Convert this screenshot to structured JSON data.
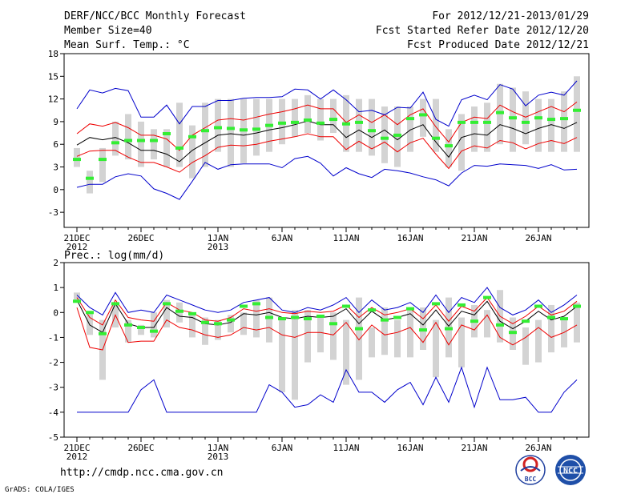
{
  "header": {
    "title": "DERF/NCC/BCC Monthly Forecast",
    "member_size": "Member Size=40",
    "variable": "Mean Surf. Temp.: °C",
    "period": "For 2012/12/21-2013/01/29",
    "started": "Fcst Started Refer Date 2012/12/20",
    "produced": "Fcst Produced Date 2012/12/21"
  },
  "footer": {
    "url": "http://cmdp.ncc.cma.gov.cn",
    "credit": "GrADS: COLA/IGES",
    "logo_bcc": "BCC",
    "logo_ncc": "NCC"
  },
  "colors": {
    "box": "#d3d3d3",
    "obs": "#33ee33",
    "ens_mean": "#000000",
    "spread": "#ee0000",
    "extreme": "#0000cc"
  },
  "chart_data": [
    {
      "type": "line",
      "title": "Mean Surf. Temp.: °C",
      "ylim": [
        -5,
        18
      ],
      "yticks": [
        -3,
        0,
        3,
        6,
        9,
        12,
        15,
        18
      ],
      "x_ticks": [
        {
          "day": 0,
          "label": "21DEC",
          "sub": "2012"
        },
        {
          "day": 5,
          "label": "26DEC",
          "sub": ""
        },
        {
          "day": 11,
          "label": "1JAN",
          "sub": "2013"
        },
        {
          "day": 16,
          "label": "6JAN",
          "sub": ""
        },
        {
          "day": 21,
          "label": "11JAN",
          "sub": ""
        },
        {
          "day": 26,
          "label": "16JAN",
          "sub": ""
        },
        {
          "day": 31,
          "label": "21JAN",
          "sub": ""
        },
        {
          "day": 36,
          "label": "26JAN",
          "sub": ""
        }
      ],
      "boxes": [
        [
          3,
          5.5
        ],
        [
          -0.5,
          2.5
        ],
        [
          1,
          5.5
        ],
        [
          4.5,
          9
        ],
        [
          4,
          10
        ],
        [
          3,
          9
        ],
        [
          4,
          8
        ],
        [
          3,
          8
        ],
        [
          3,
          11.5
        ],
        [
          1.5,
          8.5
        ],
        [
          3,
          11.5
        ],
        [
          5,
          12
        ],
        [
          3,
          12
        ],
        [
          3.5,
          12
        ],
        [
          4.5,
          12
        ],
        [
          5,
          12
        ],
        [
          6,
          12
        ],
        [
          7,
          12
        ],
        [
          7.5,
          12.5
        ],
        [
          6.5,
          12
        ],
        [
          7.5,
          12
        ],
        [
          5,
          12.5
        ],
        [
          5,
          12
        ],
        [
          4.5,
          12
        ],
        [
          3.5,
          11
        ],
        [
          3,
          11
        ],
        [
          5,
          11
        ],
        [
          7,
          12
        ],
        [
          5,
          12
        ],
        [
          3,
          8
        ],
        [
          2.5,
          10
        ],
        [
          5,
          11
        ],
        [
          5,
          11.5
        ],
        [
          6,
          14
        ],
        [
          5,
          13.5
        ],
        [
          6,
          13
        ],
        [
          5,
          12
        ],
        [
          5,
          12
        ],
        [
          5,
          13
        ],
        [
          5,
          15
        ]
      ],
      "observed": [
        4,
        1.5,
        4,
        6.2,
        6.5,
        6.5,
        6.5,
        7.4,
        5.5,
        7,
        7.8,
        8.2,
        8.1,
        7.9,
        8,
        8.5,
        8.8,
        8.9,
        9.2,
        8.8,
        9.3,
        8.7,
        8.9,
        7.8,
        6.8,
        7.2,
        9.4,
        9.9,
        6.8,
        5.8,
        8.9,
        8.9,
        8.9,
        10.2,
        9.5,
        8.9,
        9.5,
        9.3,
        9.4,
        10.5
      ],
      "series": [
        {
          "name": "ensemble mean",
          "color": "#000000",
          "values": [
            5.9,
            6.9,
            6.6,
            6.9,
            6.2,
            5.2,
            5.2,
            4.7,
            3.7,
            5.2,
            6.2,
            7.2,
            7.4,
            7.2,
            7.5,
            7.9,
            8.2,
            8.6,
            9.1,
            8.6,
            8.6,
            6.9,
            7.9,
            6.9,
            7.9,
            6.6,
            7.9,
            8.6,
            6.3,
            4.3,
            6.9,
            7.4,
            7.2,
            8.6,
            8.1,
            7.4,
            8.1,
            8.6,
            8.1,
            8.9
          ]
        },
        {
          "name": "mean + spread",
          "color": "#ee0000",
          "values": [
            7.4,
            8.7,
            8.4,
            8.9,
            8.2,
            7.2,
            7.2,
            6.7,
            5.2,
            7.2,
            8.2,
            9.2,
            9.4,
            9.2,
            9.6,
            10.0,
            10.3,
            10.7,
            11.2,
            10.7,
            10.7,
            8.9,
            9.9,
            8.9,
            9.9,
            8.6,
            9.9,
            10.7,
            8.3,
            6.3,
            8.9,
            9.6,
            9.4,
            11.2,
            10.3,
            9.6,
            10.3,
            11.0,
            10.3,
            11.6
          ]
        },
        {
          "name": "mean - spread",
          "color": "#ee0000",
          "values": [
            4.4,
            5.1,
            5.2,
            5.2,
            4.3,
            3.6,
            3.6,
            3.0,
            2.3,
            3.6,
            4.5,
            5.6,
            5.9,
            5.8,
            6.0,
            6.4,
            6.7,
            7.0,
            7.4,
            7.0,
            7.0,
            5.3,
            6.4,
            5.4,
            6.3,
            5.0,
            6.2,
            6.8,
            4.7,
            2.8,
            5.1,
            5.8,
            5.5,
            6.5,
            6.2,
            5.4,
            6.1,
            6.5,
            6.1,
            6.9
          ]
        },
        {
          "name": "maximum",
          "color": "#0000cc",
          "values": [
            10.7,
            13.2,
            12.8,
            13.4,
            13.1,
            9.6,
            9.6,
            11.2,
            8.7,
            11.0,
            11.0,
            11.8,
            11.8,
            12.1,
            12.2,
            12.2,
            12.3,
            13.3,
            13.2,
            12.0,
            13.2,
            11.9,
            10.3,
            10.5,
            9.9,
            10.9,
            10.8,
            12.9,
            9.3,
            8.4,
            11.9,
            12.5,
            11.9,
            13.9,
            13.3,
            11.1,
            12.5,
            12.9,
            12.5,
            14.4
          ]
        },
        {
          "name": "minimum",
          "color": "#0000cc",
          "values": [
            0.3,
            0.7,
            0.7,
            1.7,
            2.1,
            1.8,
            0.1,
            -0.5,
            -1.3,
            1.1,
            3.6,
            2.7,
            3.3,
            3.4,
            3.4,
            3.4,
            2.9,
            4.1,
            4.4,
            3.5,
            1.8,
            2.9,
            2.1,
            1.6,
            2.7,
            2.5,
            2.2,
            1.7,
            1.3,
            0.5,
            2.2,
            3.2,
            3.1,
            3.4,
            3.3,
            3.2,
            2.8,
            3.3,
            2.6,
            2.7
          ]
        }
      ]
    },
    {
      "type": "line",
      "title": "Prec.: log(mm/d)",
      "ylim": [
        -5,
        2
      ],
      "yticks": [
        -5,
        -4,
        -3,
        -2,
        -1,
        0,
        1,
        2
      ],
      "x_ticks": [
        {
          "day": 0,
          "label": "21DEC",
          "sub": "2012"
        },
        {
          "day": 5,
          "label": "26DEC",
          "sub": ""
        },
        {
          "day": 11,
          "label": "1JAN",
          "sub": "2013"
        },
        {
          "day": 16,
          "label": "6JAN",
          "sub": ""
        },
        {
          "day": 21,
          "label": "11JAN",
          "sub": ""
        },
        {
          "day": 26,
          "label": "16JAN",
          "sub": ""
        },
        {
          "day": 31,
          "label": "21JAN",
          "sub": ""
        },
        {
          "day": 36,
          "label": "26JAN",
          "sub": ""
        }
      ],
      "boxes": [
        [
          0.5,
          0.8
        ],
        [
          -0.9,
          0
        ],
        [
          -2.7,
          -0.3
        ],
        [
          -0.6,
          0.3
        ],
        [
          -1.2,
          -0.3
        ],
        [
          -0.9,
          -0.5
        ],
        [
          -1.0,
          0
        ],
        [
          -0.6,
          0.5
        ],
        [
          -0.4,
          0.4
        ],
        [
          -1.0,
          0
        ],
        [
          -1.3,
          -0.2
        ],
        [
          -1.1,
          -0.3
        ],
        [
          -0.8,
          -0.1
        ],
        [
          -0.9,
          0
        ],
        [
          -1.0,
          0.5
        ],
        [
          -1.2,
          0.6
        ],
        [
          -3.2,
          -0.3
        ],
        [
          -3.5,
          0.1
        ],
        [
          -2.0,
          0.1
        ],
        [
          -1.6,
          -0.1
        ],
        [
          -1.9,
          0
        ],
        [
          -2.9,
          -0.3
        ],
        [
          -2.7,
          0.6
        ],
        [
          -1.8,
          -0.6
        ],
        [
          -1.7,
          0.2
        ],
        [
          -1.8,
          -0.3
        ],
        [
          -1.8,
          0.1
        ],
        [
          -1.5,
          0.2
        ],
        [
          -2.6,
          -0.3
        ],
        [
          -1.8,
          0.6
        ],
        [
          -2.2,
          -0.2
        ],
        [
          -1.0,
          0.3
        ],
        [
          -1.0,
          0.1
        ],
        [
          -1.2,
          0.9
        ],
        [
          -1.5,
          -0.2
        ],
        [
          -2.1,
          -0.6
        ],
        [
          -2.0,
          -0.3
        ],
        [
          -1.6,
          0.3
        ],
        [
          -1.4,
          -0.3
        ],
        [
          -1.2,
          0.4
        ]
      ],
      "observed": [
        0.45,
        0,
        -0.85,
        0.35,
        -0.5,
        -0.6,
        -0.75,
        0.35,
        0.05,
        -0.05,
        -0.4,
        -0.45,
        -0.3,
        0.25,
        0.35,
        -0.2,
        -0.25,
        -0.2,
        -0.25,
        -0.15,
        -0.45,
        0.25,
        -0.65,
        0.1,
        -0.3,
        -0.2,
        0.15,
        -0.7,
        0.35,
        -0.65,
        0.3,
        -0.35,
        0.6,
        -0.5,
        -0.8,
        -0.35,
        0.25,
        -0.2,
        -0.25,
        0.25
      ],
      "series": [
        {
          "name": "ensemble mean",
          "color": "#000000",
          "values": [
            0.5,
            -0.5,
            -0.8,
            0.35,
            -0.45,
            -0.6,
            -0.6,
            0.2,
            -0.15,
            -0.2,
            -0.45,
            -0.5,
            -0.4,
            -0.05,
            -0.1,
            0,
            -0.2,
            -0.25,
            -0.15,
            -0.2,
            -0.15,
            0.15,
            -0.45,
            0.05,
            -0.3,
            -0.2,
            -0.05,
            -0.5,
            0.1,
            -0.55,
            0.05,
            -0.1,
            0.45,
            -0.35,
            -0.65,
            -0.35,
            0.05,
            -0.3,
            -0.15,
            0.25
          ]
        },
        {
          "name": "mean + spread",
          "color": "#ee0000",
          "values": [
            0.6,
            -0.2,
            -0.5,
            0.5,
            -0.2,
            -0.3,
            -0.35,
            0.4,
            0.1,
            0,
            -0.3,
            -0.35,
            -0.2,
            0.15,
            0.05,
            0.15,
            0,
            -0.05,
            0.05,
            0,
            0.05,
            0.3,
            -0.2,
            0.2,
            -0.1,
            0,
            0.15,
            -0.25,
            0.3,
            -0.35,
            0.25,
            0.05,
            0.6,
            -0.15,
            -0.45,
            -0.15,
            0.25,
            -0.1,
            0.05,
            0.45
          ]
        },
        {
          "name": "mean - spread",
          "color": "#ee0000",
          "values": [
            0.2,
            -1.4,
            -1.5,
            -0.1,
            -1.2,
            -1.15,
            -1.15,
            -0.3,
            -0.6,
            -0.7,
            -0.9,
            -1.0,
            -0.9,
            -0.6,
            -0.7,
            -0.6,
            -0.9,
            -1.0,
            -0.8,
            -0.8,
            -0.9,
            -0.4,
            -1.1,
            -0.5,
            -0.9,
            -0.8,
            -0.6,
            -1.2,
            -0.4,
            -1.3,
            -0.5,
            -0.7,
            -0.1,
            -1.0,
            -1.3,
            -1.0,
            -0.6,
            -1.0,
            -0.8,
            -0.5
          ]
        },
        {
          "name": "maximum",
          "color": "#0000cc",
          "values": [
            0.7,
            0.2,
            -0.1,
            0.8,
            0,
            0.1,
            0,
            0.7,
            0.5,
            0.3,
            0.1,
            0,
            0.1,
            0.4,
            0.5,
            0.6,
            0.1,
            0,
            0.2,
            0.1,
            0.3,
            0.6,
            0,
            0.5,
            0.1,
            0.2,
            0.4,
            0,
            0.7,
            0,
            0.6,
            0.4,
            1.0,
            0.2,
            -0.1,
            0.1,
            0.5,
            0,
            0.3,
            0.7
          ]
        },
        {
          "name": "minimum",
          "color": "#0000cc",
          "values": [
            -4,
            -4,
            -4,
            -4,
            -4,
            -3.1,
            -2.7,
            -4,
            -4,
            -4,
            -4,
            -4,
            -4,
            -4,
            -4,
            -2.9,
            -3.2,
            -3.8,
            -3.7,
            -3.3,
            -3.6,
            -2.3,
            -3.2,
            -3.2,
            -3.6,
            -3.1,
            -2.8,
            -3.7,
            -2.6,
            -3.6,
            -2.2,
            -3.8,
            -2.2,
            -3.5,
            -3.5,
            -3.4,
            -4,
            -4,
            -3.2,
            -2.7
          ]
        }
      ]
    }
  ]
}
